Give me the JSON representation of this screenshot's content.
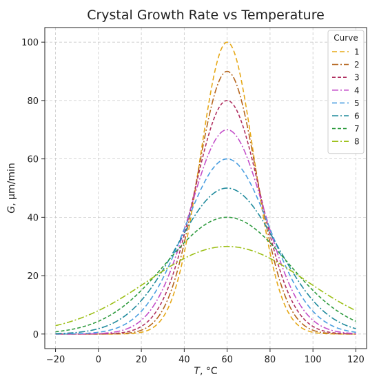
{
  "chart_data": {
    "type": "line",
    "title": "Crystal Growth Rate vs Temperature",
    "xlabel_var": "T",
    "xlabel_unit": ", °C",
    "ylabel_var": "G",
    "ylabel_unit": ", µm/min",
    "xlim": [
      -25,
      125
    ],
    "ylim": [
      -5,
      105
    ],
    "x_ticks": [
      -20,
      0,
      20,
      40,
      60,
      80,
      100,
      120
    ],
    "y_ticks": [
      0,
      20,
      40,
      60,
      80,
      100
    ],
    "grid": true,
    "legend_title": "Curve",
    "legend_position": "top-right",
    "x": [
      -20,
      -10,
      0,
      10,
      20,
      30,
      40,
      50,
      55,
      60,
      65,
      70,
      80,
      90,
      100,
      110,
      120
    ],
    "series": [
      {
        "name": "1",
        "color": "#e6a817",
        "dash": "7,4",
        "peak": 100,
        "values": [
          0.0,
          0.0,
          0.1,
          0.4,
          2.9,
          11.8,
          32.5,
          70.2,
          91.5,
          100,
          91.5,
          70.2,
          32.5,
          11.8,
          2.9,
          0.4,
          0.1
        ]
      },
      {
        "name": "2",
        "color": "#b5651d",
        "dash": "9,3,2,3",
        "peak": 90,
        "values": [
          0.0,
          0.1,
          0.3,
          1.0,
          4.3,
          14.2,
          34.5,
          67.5,
          84.1,
          90,
          84.1,
          67.5,
          34.5,
          14.2,
          4.3,
          1.0,
          0.3
        ]
      },
      {
        "name": "3",
        "color": "#b03060",
        "dash": "5,3",
        "peak": 80,
        "values": [
          0.0,
          0.1,
          0.5,
          1.6,
          5.5,
          15.6,
          35.2,
          63.2,
          76.2,
          80,
          76.2,
          63.2,
          35.2,
          15.6,
          5.5,
          1.6,
          0.5
        ]
      },
      {
        "name": "4",
        "color": "#c34ec9",
        "dash": "9,3,2,3",
        "peak": 70,
        "values": [
          0.1,
          0.3,
          0.7,
          2.2,
          6.6,
          16.6,
          34.5,
          57.6,
          67.4,
          70,
          67.4,
          57.6,
          34.5,
          16.6,
          6.6,
          2.2,
          0.7
        ]
      },
      {
        "name": "5",
        "color": "#4a9ee0",
        "dash": "7,4",
        "peak": 60,
        "values": [
          0.2,
          0.5,
          1.1,
          3.2,
          7.9,
          17.2,
          32.5,
          50.5,
          58.0,
          60,
          58.0,
          50.5,
          32.5,
          17.2,
          7.9,
          3.2,
          1.1
        ]
      },
      {
        "name": "6",
        "color": "#1f8a9c",
        "dash": "9,3,2,3",
        "peak": 50,
        "values": [
          0.3,
          0.8,
          1.8,
          4.1,
          8.9,
          17.3,
          29.6,
          42.7,
          48.4,
          50,
          48.4,
          42.7,
          29.6,
          17.3,
          8.9,
          4.1,
          1.8
        ]
      },
      {
        "name": "7",
        "color": "#2e9b3e",
        "dash": "5,3",
        "peak": 40,
        "values": [
          0.5,
          1.1,
          2.4,
          5.0,
          9.5,
          16.7,
          26.3,
          35.3,
          38.9,
          40,
          38.9,
          35.3,
          26.3,
          16.7,
          9.5,
          5.0,
          2.4
        ]
      },
      {
        "name": "8",
        "color": "#9cbf16",
        "dash": "9,3,2,3",
        "peak": 30,
        "values": [
          0.8,
          1.6,
          3.1,
          5.7,
          9.5,
          14.7,
          20.6,
          26.1,
          28.7,
          30,
          28.7,
          26.1,
          20.6,
          14.7,
          9.5,
          5.7,
          3.1
        ]
      }
    ]
  }
}
